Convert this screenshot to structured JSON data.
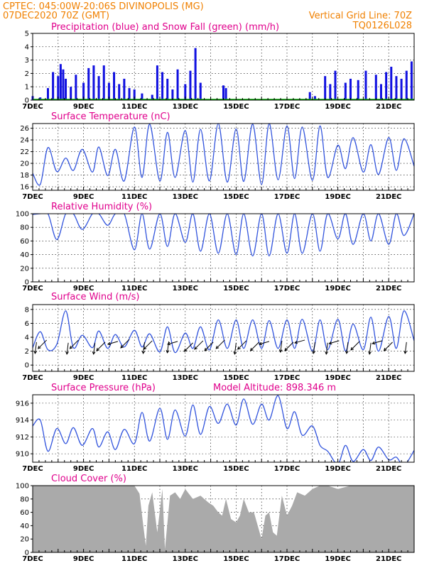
{
  "header": {
    "line1_left": "CPTEC:   045:00W-20:06S   DIVINOPOLIS (MG)",
    "line2_left": "07DEC2020 70Z (GMT)",
    "line2_right": "Vertical Grid Line: 70Z",
    "line3_right": "TQ0126L028"
  },
  "colors": {
    "series": "#3355dd",
    "precip": "#1010e0",
    "snow": "#00aa00",
    "cloud": "#aaaaaa",
    "title": "#e0008c",
    "header": "#f08000"
  },
  "chart_data": [
    {
      "id": "precip",
      "type": "bar",
      "title": "Precipitation (blue) and Snow Fall (green) (mm/h)",
      "ylim": [
        0,
        5
      ],
      "yticks": [
        "0",
        "1",
        "2",
        "3",
        "4",
        "5"
      ],
      "xlabels": [
        "7DEC",
        "9DEC",
        "11DEC",
        "13DEC",
        "15DEC",
        "17DEC",
        "19DEC",
        "21DEC"
      ],
      "x_day_range": [
        7,
        22
      ],
      "series": [
        {
          "name": "Precipitation",
          "x": [
            7.0,
            7.3,
            7.6,
            7.8,
            8.0,
            8.1,
            8.2,
            8.3,
            8.5,
            8.7,
            9.0,
            9.2,
            9.4,
            9.6,
            9.8,
            10.0,
            10.2,
            10.4,
            10.6,
            10.8,
            11.0,
            11.3,
            11.7,
            11.9,
            12.1,
            12.3,
            12.5,
            12.7,
            13.0,
            13.2,
            13.4,
            13.6,
            14.5,
            14.6,
            17.9,
            18.1,
            18.5,
            18.7,
            18.9,
            19.3,
            19.5,
            19.8,
            20.1,
            20.5,
            20.7,
            20.9,
            21.1,
            21.3,
            21.5,
            21.7,
            21.9
          ],
          "values": [
            0.3,
            0.2,
            0.9,
            2.1,
            1.8,
            2.7,
            2.3,
            1.6,
            1.0,
            1.9,
            1.3,
            2.4,
            2.6,
            1.8,
            2.6,
            1.3,
            2.1,
            1.2,
            1.6,
            0.9,
            0.8,
            0.5,
            0.4,
            2.6,
            2.1,
            1.6,
            0.8,
            2.3,
            1.2,
            2.2,
            3.9,
            1.3,
            1.1,
            0.9,
            0.6,
            0.3,
            1.8,
            1.2,
            2.2,
            1.3,
            1.6,
            1.5,
            2.2,
            1.9,
            1.2,
            2.1,
            2.5,
            1.8,
            1.6,
            2.2,
            2.9
          ]
        },
        {
          "name": "Snow Fall",
          "x": [],
          "values": []
        }
      ]
    },
    {
      "id": "temp",
      "type": "line",
      "title": "Surface Temperature (nC)",
      "ylim": [
        15.4,
        26.8
      ],
      "yticks": [
        "16",
        "18",
        "20",
        "22",
        "24",
        "26"
      ],
      "xlabels": [
        "7DEC",
        "9DEC",
        "11DEC",
        "13DEC",
        "15DEC",
        "17DEC",
        "19DEC",
        "21DEC"
      ],
      "x_day_range": [
        7,
        22
      ],
      "series": [
        {
          "name": "Temperature",
          "x": [
            7.0,
            7.3,
            7.6,
            7.95,
            8.3,
            8.6,
            8.95,
            9.35,
            9.6,
            9.95,
            10.25,
            10.6,
            11.0,
            11.3,
            11.6,
            12.0,
            12.3,
            12.6,
            13.0,
            13.3,
            13.6,
            13.95,
            14.3,
            14.65,
            15.0,
            15.3,
            15.65,
            16.0,
            16.3,
            16.65,
            17.0,
            17.3,
            17.6,
            18.0,
            18.3,
            18.6,
            19.0,
            19.3,
            19.6,
            20.0,
            20.3,
            20.6,
            21.0,
            21.3,
            21.6,
            22.0
          ],
          "values": [
            18.3,
            16.4,
            22.7,
            18.6,
            20.9,
            18.8,
            22.4,
            18.5,
            22.8,
            17.9,
            22.4,
            17.0,
            26.2,
            17.6,
            26.7,
            17.0,
            25.3,
            17.6,
            25.6,
            16.8,
            25.8,
            17.0,
            26.8,
            16.8,
            25.9,
            16.9,
            26.7,
            16.4,
            26.8,
            17.2,
            26.4,
            17.4,
            26.2,
            17.1,
            26.4,
            17.6,
            23.1,
            19.1,
            24.4,
            18.5,
            23.2,
            18.1,
            24.4,
            18.8,
            24.2,
            19.5
          ]
        }
      ]
    },
    {
      "id": "rh",
      "type": "line",
      "title": "Relative Humidity (%)",
      "ylim": [
        0,
        100
      ],
      "yticks": [
        "0",
        "20",
        "40",
        "60",
        "80",
        "100"
      ],
      "xlabels": [
        "7DEC",
        "9DEC",
        "11DEC",
        "13DEC",
        "15DEC",
        "17DEC",
        "19DEC",
        "21DEC"
      ],
      "x_day_range": [
        7,
        22
      ],
      "series": [
        {
          "name": "Relative Humidity",
          "x": [
            7.0,
            7.3,
            7.6,
            7.95,
            8.3,
            8.6,
            8.95,
            9.35,
            9.6,
            9.95,
            10.25,
            10.6,
            11.0,
            11.3,
            11.6,
            12.0,
            12.3,
            12.6,
            13.0,
            13.3,
            13.6,
            13.95,
            14.3,
            14.65,
            15.0,
            15.3,
            15.65,
            16.0,
            16.3,
            16.65,
            17.0,
            17.3,
            17.6,
            18.0,
            18.3,
            18.6,
            19.0,
            19.3,
            19.6,
            20.0,
            20.3,
            20.6,
            21.0,
            21.3,
            21.6,
            22.0
          ],
          "values": [
            99,
            100,
            100,
            62,
            100,
            100,
            77,
            100,
            100,
            83,
            100,
            100,
            47,
            100,
            48,
            100,
            52,
            100,
            58,
            100,
            45,
            100,
            42,
            100,
            40,
            100,
            38,
            100,
            38,
            100,
            42,
            100,
            42,
            100,
            45,
            100,
            63,
            100,
            55,
            100,
            60,
            100,
            55,
            100,
            68,
            100
          ]
        }
      ]
    },
    {
      "id": "wind",
      "type": "line",
      "title": "Surface Wind (m/s)",
      "ylim": [
        -0.9,
        8.7
      ],
      "yticks": [
        "0",
        "2",
        "4",
        "6",
        "8"
      ],
      "xlabels": [
        "7DEC",
        "9DEC",
        "11DEC",
        "13DEC",
        "15DEC",
        "17DEC",
        "19DEC",
        "21DEC"
      ],
      "x_day_range": [
        7,
        22
      ],
      "series": [
        {
          "name": "Wind speed",
          "x": [
            7.0,
            7.3,
            7.6,
            7.95,
            8.3,
            8.6,
            8.95,
            9.35,
            9.6,
            9.95,
            10.25,
            10.6,
            11.0,
            11.3,
            11.6,
            12.0,
            12.3,
            12.6,
            13.0,
            13.3,
            13.6,
            13.95,
            14.3,
            14.65,
            15.0,
            15.3,
            15.65,
            16.0,
            16.3,
            16.65,
            17.0,
            17.3,
            17.6,
            18.0,
            18.3,
            18.6,
            19.0,
            19.3,
            19.6,
            20.0,
            20.3,
            20.6,
            21.0,
            21.3,
            21.6,
            22.0
          ],
          "values": [
            2.5,
            4.8,
            2.2,
            3.0,
            7.8,
            2.5,
            4.3,
            2.5,
            4.9,
            2.4,
            4.4,
            2.6,
            5.0,
            2.6,
            4.5,
            1.9,
            5.5,
            1.8,
            4.6,
            2.4,
            5.5,
            2.2,
            6.5,
            2.4,
            6.5,
            2.4,
            6.5,
            2.4,
            6.4,
            2.4,
            6.5,
            2.4,
            6.6,
            2.0,
            6.5,
            2.2,
            6.6,
            2.0,
            5.9,
            2.2,
            6.9,
            2.0,
            7.0,
            2.4,
            7.8,
            3.5
          ]
        }
      ],
      "arrows": [
        {
          "x": 7.15,
          "y": 3.3,
          "dir": "down"
        },
        {
          "x": 7.55,
          "y": 3.6,
          "dir": "sw"
        },
        {
          "x": 8.4,
          "y": 3.2,
          "dir": "down"
        },
        {
          "x": 8.8,
          "y": 3.6,
          "dir": "sw"
        },
        {
          "x": 9.45,
          "y": 3.2,
          "dir": "down"
        },
        {
          "x": 9.85,
          "y": 3.3,
          "dir": "sw"
        },
        {
          "x": 10.35,
          "y": 3.4,
          "dir": "w"
        },
        {
          "x": 10.8,
          "y": 3.7,
          "dir": "sw"
        },
        {
          "x": 11.4,
          "y": 3.3,
          "dir": "down"
        },
        {
          "x": 11.7,
          "y": 3.5,
          "dir": "sw"
        },
        {
          "x": 12.35,
          "y": 3.4,
          "dir": "down"
        },
        {
          "x": 12.7,
          "y": 3.4,
          "dir": "w"
        },
        {
          "x": 13.3,
          "y": 3.2,
          "dir": "sw"
        },
        {
          "x": 13.7,
          "y": 3.5,
          "dir": "sw"
        },
        {
          "x": 14.1,
          "y": 3.3,
          "dir": "sw"
        },
        {
          "x": 14.55,
          "y": 3.6,
          "dir": "sw"
        },
        {
          "x": 15.0,
          "y": 3.2,
          "dir": "down"
        },
        {
          "x": 15.4,
          "y": 3.5,
          "dir": "sw"
        },
        {
          "x": 15.9,
          "y": 3.3,
          "dir": "sw"
        },
        {
          "x": 16.3,
          "y": 3.4,
          "dir": "w"
        },
        {
          "x": 16.8,
          "y": 3.5,
          "dir": "down"
        },
        {
          "x": 17.25,
          "y": 3.3,
          "dir": "sw"
        },
        {
          "x": 17.7,
          "y": 3.6,
          "dir": "w"
        },
        {
          "x": 18.1,
          "y": 3.3,
          "dir": "down"
        },
        {
          "x": 18.6,
          "y": 3.2,
          "dir": "down"
        },
        {
          "x": 19.05,
          "y": 3.5,
          "dir": "w"
        },
        {
          "x": 19.4,
          "y": 3.3,
          "dir": "down"
        },
        {
          "x": 19.85,
          "y": 3.4,
          "dir": "sw"
        },
        {
          "x": 20.3,
          "y": 3.2,
          "dir": "down"
        },
        {
          "x": 20.75,
          "y": 3.5,
          "dir": "w"
        },
        {
          "x": 21.15,
          "y": 3.3,
          "dir": "sw"
        },
        {
          "x": 21.7,
          "y": 3.3,
          "dir": "down"
        }
      ]
    },
    {
      "id": "pressure",
      "type": "line",
      "title": "Surface Pressure (hPa)",
      "annotation": "Model Altitude: 898.346 m",
      "ylim": [
        909,
        917
      ],
      "yticks": [
        "910",
        "912",
        "914",
        "916"
      ],
      "xlabels": [
        "7DEC",
        "9DEC",
        "11DEC",
        "13DEC",
        "15DEC",
        "17DEC",
        "19DEC",
        "21DEC"
      ],
      "x_day_range": [
        7,
        22
      ],
      "series": [
        {
          "name": "Pressure",
          "x": [
            7.0,
            7.3,
            7.6,
            7.95,
            8.3,
            8.6,
            8.95,
            9.35,
            9.6,
            9.95,
            10.25,
            10.6,
            11.0,
            11.3,
            11.6,
            12.0,
            12.3,
            12.6,
            13.0,
            13.3,
            13.6,
            13.95,
            14.3,
            14.65,
            15.0,
            15.3,
            15.65,
            16.0,
            16.3,
            16.65,
            17.0,
            17.3,
            17.6,
            18.0,
            18.3,
            18.6,
            19.0,
            19.3,
            19.6,
            20.0,
            20.3,
            20.6,
            21.0,
            21.3,
            21.6,
            22.0
          ],
          "values": [
            913.3,
            914.0,
            910.3,
            913.0,
            911.2,
            913.1,
            911.0,
            913.0,
            910.8,
            912.6,
            910.5,
            912.9,
            911.2,
            914.9,
            911.5,
            915.4,
            911.7,
            915.2,
            912.1,
            915.8,
            912.3,
            915.6,
            913.6,
            915.9,
            913.4,
            916.5,
            913.5,
            915.9,
            914.0,
            916.9,
            913.0,
            915.0,
            912.2,
            913.3,
            911.0,
            910.3,
            908.8,
            911.0,
            909.1,
            910.5,
            909.2,
            910.8,
            909.3,
            909.6,
            908.6,
            910.4
          ]
        }
      ]
    },
    {
      "id": "cloud",
      "type": "area",
      "title": "Cloud Cover (%)",
      "ylim": [
        0,
        100
      ],
      "yticks": [
        "0",
        "20",
        "40",
        "60",
        "80",
        "100"
      ],
      "xlabels": [
        "7DEC",
        "9DEC",
        "11DEC",
        "13DEC",
        "15DEC",
        "17DEC",
        "19DEC",
        "21DEC"
      ],
      "x_day_range": [
        7,
        22
      ],
      "series": [
        {
          "name": "Cloud Cover",
          "x": [
            7.0,
            11.0,
            11.2,
            11.35,
            11.45,
            11.55,
            11.7,
            11.9,
            12.1,
            12.2,
            12.4,
            12.6,
            12.8,
            13.0,
            13.3,
            13.6,
            13.9,
            14.1,
            14.3,
            14.45,
            14.6,
            14.8,
            15.0,
            15.15,
            15.3,
            15.5,
            15.7,
            15.85,
            16.0,
            16.15,
            16.3,
            16.45,
            16.6,
            16.8,
            17.0,
            17.2,
            17.4,
            17.7,
            18.0,
            18.3,
            18.6,
            19.0,
            19.5,
            20.0,
            20.5,
            21.0,
            21.5,
            22.0
          ],
          "values": [
            100,
            100,
            88,
            40,
            10,
            70,
            90,
            30,
            95,
            5,
            85,
            90,
            80,
            95,
            80,
            85,
            75,
            70,
            60,
            55,
            80,
            50,
            45,
            55,
            80,
            60,
            60,
            40,
            20,
            55,
            60,
            30,
            25,
            85,
            55,
            70,
            90,
            85,
            95,
            100,
            100,
            95,
            100,
            100,
            100,
            100,
            100,
            100
          ]
        }
      ]
    }
  ]
}
